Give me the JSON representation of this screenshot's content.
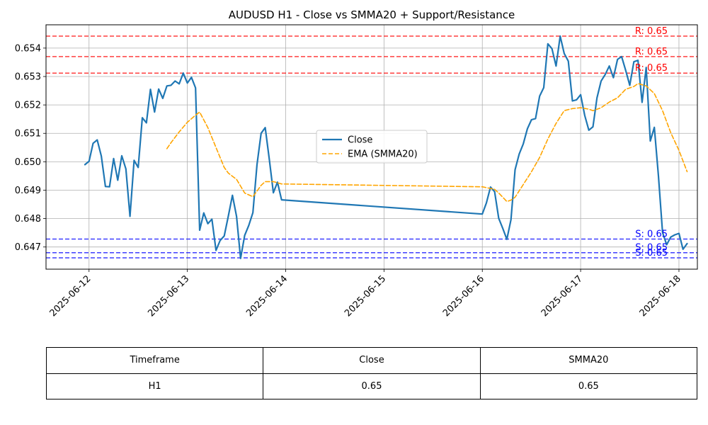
{
  "chart_data": {
    "type": "line",
    "title": "AUDUSD H1 - Close vs SMMA20 + Support/Resistance",
    "xlabel": "",
    "ylabel": "",
    "x_ticks": [
      "2025-06-12",
      "2025-06-13",
      "2025-06-14",
      "2025-06-15",
      "2025-06-16",
      "2025-06-17",
      "2025-06-18"
    ],
    "y_ticks": [
      "0.647",
      "0.648",
      "0.649",
      "0.650",
      "0.651",
      "0.652",
      "0.653",
      "0.654"
    ],
    "xlim": [
      "2025-06-11 13:30",
      "2025-06-18 04:30"
    ],
    "ylim": [
      0.64622,
      0.65482
    ],
    "grid": true,
    "legend_position": "center",
    "series": [
      {
        "name": "Close",
        "color": "#1f77b4",
        "style": "solid",
        "points": [
          [
            "2025-06-11 23:00",
            0.6499
          ],
          [
            "2025-06-12 00:00",
            0.65002
          ],
          [
            "2025-06-12 01:00",
            0.65065
          ],
          [
            "2025-06-12 02:00",
            0.65077
          ],
          [
            "2025-06-12 03:00",
            0.6502
          ],
          [
            "2025-06-12 04:00",
            0.64913
          ],
          [
            "2025-06-12 05:00",
            0.64912
          ],
          [
            "2025-06-12 06:00",
            0.65011
          ],
          [
            "2025-06-12 07:00",
            0.64935
          ],
          [
            "2025-06-12 08:00",
            0.65021
          ],
          [
            "2025-06-12 09:00",
            0.64975
          ],
          [
            "2025-06-12 10:00",
            0.64808
          ],
          [
            "2025-06-12 11:00",
            0.65005
          ],
          [
            "2025-06-12 12:00",
            0.6498
          ],
          [
            "2025-06-12 13:00",
            0.65155
          ],
          [
            "2025-06-12 14:00",
            0.65137
          ],
          [
            "2025-06-12 15:00",
            0.65255
          ],
          [
            "2025-06-12 16:00",
            0.65175
          ],
          [
            "2025-06-12 17:00",
            0.65256
          ],
          [
            "2025-06-12 18:00",
            0.65223
          ],
          [
            "2025-06-12 19:00",
            0.65267
          ],
          [
            "2025-06-12 20:00",
            0.65269
          ],
          [
            "2025-06-12 21:00",
            0.65284
          ],
          [
            "2025-06-12 22:00",
            0.65274
          ],
          [
            "2025-06-12 23:00",
            0.65312
          ],
          [
            "2025-06-13 00:00",
            0.65277
          ],
          [
            "2025-06-13 01:00",
            0.65297
          ],
          [
            "2025-06-13 02:00",
            0.6526
          ],
          [
            "2025-06-13 03:00",
            0.64759
          ],
          [
            "2025-06-13 04:00",
            0.6482
          ],
          [
            "2025-06-13 05:00",
            0.64782
          ],
          [
            "2025-06-13 06:00",
            0.64798
          ],
          [
            "2025-06-13 07:00",
            0.64688
          ],
          [
            "2025-06-13 08:00",
            0.64723
          ],
          [
            "2025-06-13 09:00",
            0.64739
          ],
          [
            "2025-06-13 10:00",
            0.64809
          ],
          [
            "2025-06-13 11:00",
            0.64882
          ],
          [
            "2025-06-13 12:00",
            0.64808
          ],
          [
            "2025-06-13 13:00",
            0.6466
          ],
          [
            "2025-06-13 14:00",
            0.64741
          ],
          [
            "2025-06-13 15:00",
            0.64776
          ],
          [
            "2025-06-13 16:00",
            0.64821
          ],
          [
            "2025-06-13 17:00",
            0.6499
          ],
          [
            "2025-06-13 18:00",
            0.651
          ],
          [
            "2025-06-13 19:00",
            0.6512
          ],
          [
            "2025-06-13 20:00",
            0.6501
          ],
          [
            "2025-06-13 21:00",
            0.64891
          ],
          [
            "2025-06-13 22:00",
            0.64928
          ],
          [
            "2025-06-13 23:00",
            0.64866
          ],
          [
            "2025-06-16 00:00",
            0.64816
          ],
          [
            "2025-06-16 01:00",
            0.64855
          ],
          [
            "2025-06-16 02:00",
            0.64911
          ],
          [
            "2025-06-16 03:00",
            0.64895
          ],
          [
            "2025-06-16 04:00",
            0.64801
          ],
          [
            "2025-06-16 05:00",
            0.64765
          ],
          [
            "2025-06-16 06:00",
            0.64727
          ],
          [
            "2025-06-16 07:00",
            0.64796
          ],
          [
            "2025-06-16 08:00",
            0.64972
          ],
          [
            "2025-06-16 09:00",
            0.65027
          ],
          [
            "2025-06-16 10:00",
            0.65063
          ],
          [
            "2025-06-16 11:00",
            0.65116
          ],
          [
            "2025-06-16 12:00",
            0.65148
          ],
          [
            "2025-06-16 13:00",
            0.65152
          ],
          [
            "2025-06-16 14:00",
            0.65231
          ],
          [
            "2025-06-16 15:00",
            0.65261
          ],
          [
            "2025-06-16 16:00",
            0.65415
          ],
          [
            "2025-06-16 17:00",
            0.65398
          ],
          [
            "2025-06-16 18:00",
            0.65337
          ],
          [
            "2025-06-16 19:00",
            0.65442
          ],
          [
            "2025-06-16 20:00",
            0.65381
          ],
          [
            "2025-06-16 21:00",
            0.65354
          ],
          [
            "2025-06-16 22:00",
            0.65214
          ],
          [
            "2025-06-16 23:00",
            0.65218
          ],
          [
            "2025-06-17 00:00",
            0.65236
          ],
          [
            "2025-06-17 01:00",
            0.65163
          ],
          [
            "2025-06-17 02:00",
            0.65111
          ],
          [
            "2025-06-17 03:00",
            0.65123
          ],
          [
            "2025-06-17 04:00",
            0.65225
          ],
          [
            "2025-06-17 05:00",
            0.65284
          ],
          [
            "2025-06-17 06:00",
            0.65307
          ],
          [
            "2025-06-17 07:00",
            0.65337
          ],
          [
            "2025-06-17 08:00",
            0.65296
          ],
          [
            "2025-06-17 09:00",
            0.6536
          ],
          [
            "2025-06-17 10:00",
            0.6537
          ],
          [
            "2025-06-17 11:00",
            0.65322
          ],
          [
            "2025-06-17 12:00",
            0.65269
          ],
          [
            "2025-06-17 13:00",
            0.65352
          ],
          [
            "2025-06-17 14:00",
            0.65357
          ],
          [
            "2025-06-17 15:00",
            0.65209
          ],
          [
            "2025-06-17 16:00",
            0.65332
          ],
          [
            "2025-06-17 17:00",
            0.65073
          ],
          [
            "2025-06-17 18:00",
            0.65121
          ],
          [
            "2025-06-17 19:00",
            0.6495
          ],
          [
            "2025-06-17 20:00",
            0.64751
          ],
          [
            "2025-06-17 21:00",
            0.64708
          ],
          [
            "2025-06-17 22:00",
            0.64735
          ],
          [
            "2025-06-17 23:00",
            0.64743
          ],
          [
            "2025-06-18 00:00",
            0.64748
          ],
          [
            "2025-06-18 01:00",
            0.64692
          ],
          [
            "2025-06-18 02:00",
            0.64712
          ]
        ]
      },
      {
        "name": "EMA (SMMA20)",
        "color": "#ffa500",
        "style": "dashed",
        "points": [
          [
            "2025-06-12 19:00",
            0.65046
          ],
          [
            "2025-06-12 20:00",
            0.65067
          ],
          [
            "2025-06-12 22:00",
            0.65105
          ],
          [
            "2025-06-13 00:00",
            0.65139
          ],
          [
            "2025-06-13 02:00",
            0.65164
          ],
          [
            "2025-06-13 03:00",
            0.65175
          ],
          [
            "2025-06-13 05:00",
            0.6512
          ],
          [
            "2025-06-13 07:00",
            0.6505
          ],
          [
            "2025-06-13 09:00",
            0.6498
          ],
          [
            "2025-06-13 10:00",
            0.6496
          ],
          [
            "2025-06-13 12:00",
            0.64938
          ],
          [
            "2025-06-13 14:00",
            0.6489
          ],
          [
            "2025-06-13 16:00",
            0.64877
          ],
          [
            "2025-06-13 18:00",
            0.64917
          ],
          [
            "2025-06-13 19:00",
            0.6493
          ],
          [
            "2025-06-13 21:00",
            0.6493
          ],
          [
            "2025-06-13 23:00",
            0.64922
          ],
          [
            "2025-06-16 00:00",
            0.64912
          ],
          [
            "2025-06-16 02:00",
            0.64906
          ],
          [
            "2025-06-16 03:00",
            0.64903
          ],
          [
            "2025-06-16 04:00",
            0.6489
          ],
          [
            "2025-06-16 05:00",
            0.64875
          ],
          [
            "2025-06-16 06:00",
            0.6486
          ],
          [
            "2025-06-16 07:00",
            0.64865
          ],
          [
            "2025-06-16 08:00",
            0.64875
          ],
          [
            "2025-06-16 10:00",
            0.6492
          ],
          [
            "2025-06-16 12:00",
            0.64965
          ],
          [
            "2025-06-16 14:00",
            0.65015
          ],
          [
            "2025-06-16 16:00",
            0.6508
          ],
          [
            "2025-06-16 18:00",
            0.65135
          ],
          [
            "2025-06-16 20:00",
            0.6518
          ],
          [
            "2025-06-16 22:00",
            0.65187
          ],
          [
            "2025-06-17 00:00",
            0.6519
          ],
          [
            "2025-06-17 02:00",
            0.65185
          ],
          [
            "2025-06-17 03:00",
            0.6518
          ],
          [
            "2025-06-17 05:00",
            0.6519
          ],
          [
            "2025-06-17 07:00",
            0.6521
          ],
          [
            "2025-06-17 09:00",
            0.65225
          ],
          [
            "2025-06-17 11:00",
            0.65255
          ],
          [
            "2025-06-17 13:00",
            0.65265
          ],
          [
            "2025-06-17 14:00",
            0.65275
          ],
          [
            "2025-06-17 16:00",
            0.65267
          ],
          [
            "2025-06-17 18:00",
            0.6524
          ],
          [
            "2025-06-17 20:00",
            0.6518
          ],
          [
            "2025-06-17 22:00",
            0.65102
          ],
          [
            "2025-06-18 00:00",
            0.6504
          ],
          [
            "2025-06-18 02:00",
            0.64965
          ]
        ]
      }
    ],
    "resistance_levels": [
      {
        "label": "R: 0.65",
        "value": 0.65442,
        "color": "#ff0000"
      },
      {
        "label": "R: 0.65",
        "value": 0.6537,
        "color": "#ff0000"
      },
      {
        "label": "R: 0.65",
        "value": 0.65312,
        "color": "#ff0000"
      }
    ],
    "support_levels": [
      {
        "label": "S: 0.65",
        "value": 0.64728,
        "color": "#0000ff"
      },
      {
        "label": "S: 0.65",
        "value": 0.6468,
        "color": "#0000ff"
      },
      {
        "label": "S: 0.65",
        "value": 0.64662,
        "color": "#0000ff"
      }
    ]
  },
  "summary_table": {
    "headers": [
      "Timeframe",
      "Close",
      "SMMA20"
    ],
    "row": [
      "H1",
      "0.65",
      "0.65"
    ]
  }
}
